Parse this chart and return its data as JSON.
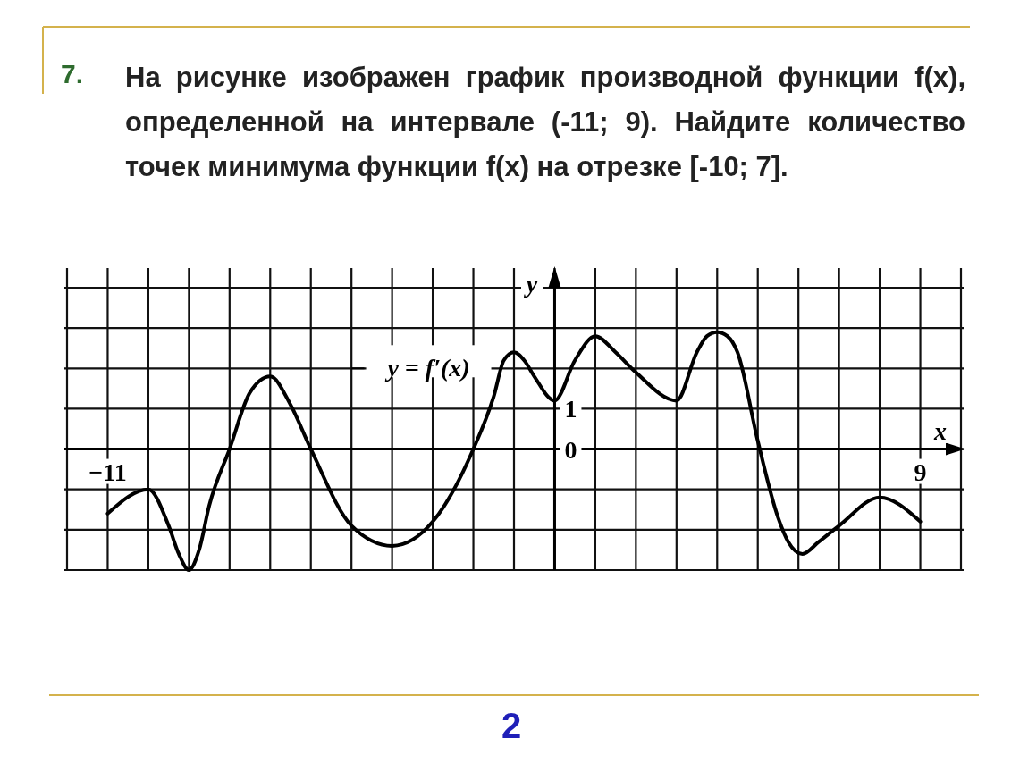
{
  "chart_data": {
    "type": "line",
    "title": "На рисунке изображен график производной функции f(x), определенной на интервале (-11; 9). Найдите количество точек минимума функции f(x) на отрезке [-10; 7].",
    "annotations": [
      "7.",
      "2"
    ],
    "xlabel": "x",
    "ylabel": "y",
    "x": [
      -11,
      -10,
      -9.5,
      -9.25,
      -9,
      -8.75,
      -8.5,
      -8,
      -7.5,
      -7,
      -6.5,
      -6,
      -5,
      -4,
      -3,
      -2,
      -1.5,
      -1.25,
      -1,
      -0.75,
      -0.5,
      0,
      0.5,
      1,
      1.5,
      2,
      3,
      3.5,
      3.75,
      4,
      4.25,
      4.5,
      5,
      5.5,
      5.75,
      6.1,
      6.5,
      7,
      8,
      9
    ],
    "series": [
      {
        "name": "y = f′(x)",
        "color": "#000000",
        "values": [
          -1.6,
          -1.0,
          -1.9,
          -2.6,
          -3.0,
          -2.5,
          -1.4,
          0,
          1.4,
          1.8,
          1.1,
          0,
          -1.9,
          -2.4,
          -1.8,
          0,
          1.3,
          2.2,
          2.4,
          2.2,
          1.8,
          1.2,
          2.2,
          2.8,
          2.4,
          1.9,
          1.2,
          2.4,
          2.8,
          2.9,
          2.8,
          2.4,
          0.2,
          -1.7,
          -2.3,
          -2.6,
          -2.3,
          -1.9,
          -1.2,
          -1.8
        ]
      }
    ],
    "xlim": [
      -12,
      10
    ],
    "ylim": [
      -3,
      4
    ],
    "xticks": [
      {
        "value": -12,
        "label": null
      },
      {
        "value": -11,
        "label": "−11"
      },
      {
        "value": -10,
        "label": null
      },
      {
        "value": -9,
        "label": null
      },
      {
        "value": -8,
        "label": null
      },
      {
        "value": -7,
        "label": null
      },
      {
        "value": -6,
        "label": null
      },
      {
        "value": -5,
        "label": null
      },
      {
        "value": -4,
        "label": null
      },
      {
        "value": -3,
        "label": null
      },
      {
        "value": -2,
        "label": null
      },
      {
        "value": -1,
        "label": null
      },
      {
        "value": 0,
        "label": null
      },
      {
        "value": 1,
        "label": null
      },
      {
        "value": 2,
        "label": null
      },
      {
        "value": 3,
        "label": null
      },
      {
        "value": 4,
        "label": null
      },
      {
        "value": 5,
        "label": null
      },
      {
        "value": 6,
        "label": null
      },
      {
        "value": 7,
        "label": null
      },
      {
        "value": 8,
        "label": null
      },
      {
        "value": 9,
        "label": "9"
      },
      {
        "value": 10,
        "label": null
      }
    ],
    "yticks": [
      {
        "value": -3,
        "label": null
      },
      {
        "value": -2,
        "label": null
      },
      {
        "value": -1,
        "label": null
      },
      {
        "value": 0,
        "label": "0"
      },
      {
        "value": 1,
        "label": "1"
      },
      {
        "value": 2,
        "label": null
      },
      {
        "value": 3,
        "label": null
      },
      {
        "value": 4,
        "label": null
      }
    ],
    "grid": true,
    "marker": "none",
    "line_style": "solid"
  }
}
